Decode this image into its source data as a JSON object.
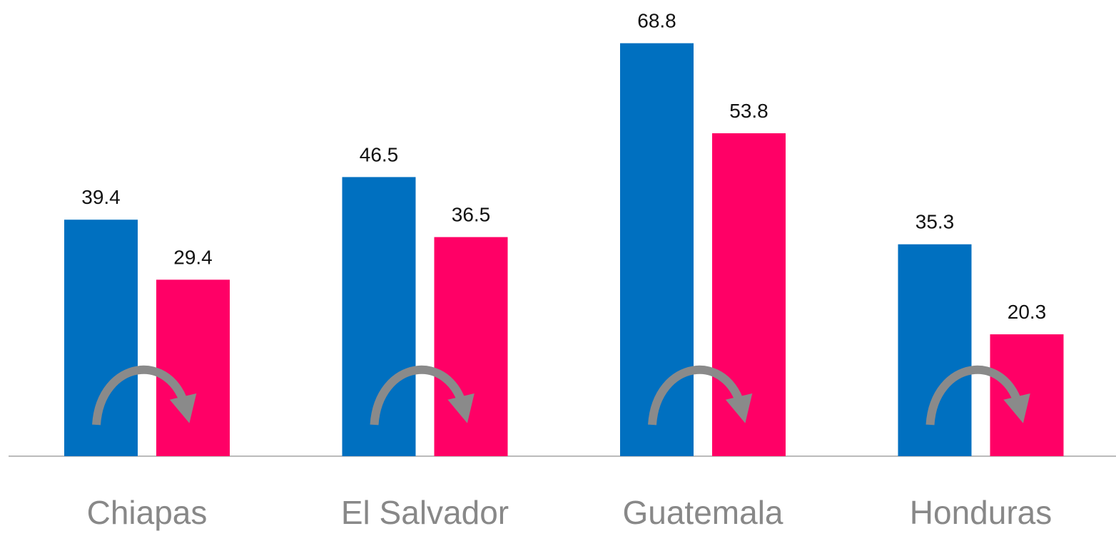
{
  "chart_data": {
    "type": "bar",
    "categories": [
      "Chiapas",
      "El Salvador",
      "Guatemala",
      "Honduras"
    ],
    "series": [
      {
        "color": "#0070c0",
        "values": [
          39.4,
          46.5,
          68.8,
          35.3
        ]
      },
      {
        "color": "#ff0066",
        "values": [
          29.4,
          36.5,
          53.8,
          20.3
        ]
      }
    ],
    "ylim": [
      0,
      76
    ]
  }
}
